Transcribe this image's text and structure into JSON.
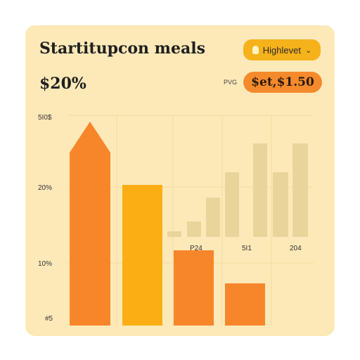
{
  "card": {
    "title": "Startitupcon meals",
    "dropdown": {
      "label": "Highlevet",
      "icon": "lightbulb-icon",
      "chevron_icon": "chevron-down-icon"
    },
    "big_value": "$20%",
    "small_label": "PVG",
    "price_pill": "$et,$1.50"
  },
  "colors": {
    "card_bg": "#fde9b8",
    "dropdown_bg": "#f6b21b",
    "pill_bg": "#f58a2c",
    "bar_orange": "#f7862a",
    "bar_yellow": "#fbae14",
    "bar_faded": "#e9d49c"
  },
  "chart_data": {
    "type": "bar",
    "y_tick_labels": [
      "5I0$",
      "20%",
      "10%",
      "#5"
    ],
    "x_tick_labels": [
      "P24",
      "5I1",
      "204"
    ],
    "series": [
      {
        "values": [
          290,
          200,
          107,
          60
        ]
      },
      {
        "values": [
          8,
          22,
          56,
          92,
          133
        ]
      }
    ]
  }
}
